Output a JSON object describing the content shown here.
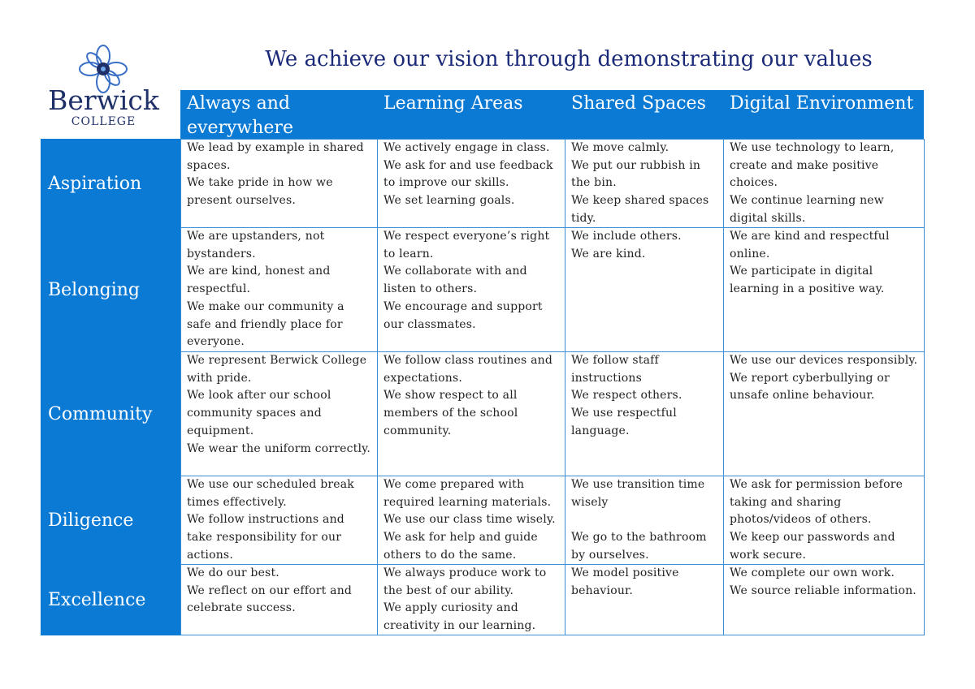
{
  "logo": {
    "name": "Berwick",
    "sub": "COLLEGE"
  },
  "title": "We achieve our vision through demonstrating our values",
  "table": {
    "columns": [
      "Always and everywhere",
      "Learning Areas",
      "Shared Spaces",
      "Digital Environment"
    ],
    "rows": [
      {
        "label": "Aspiration",
        "cells": [
          [
            "We lead by example in shared spaces.",
            "We take pride in how we present ourselves."
          ],
          [
            "We actively engage in class.",
            "We ask for and use feedback to improve our skills.",
            "We set learning goals."
          ],
          [
            "We move calmly.",
            "We put our rubbish in the bin.",
            "We keep shared spaces tidy."
          ],
          [
            "We use technology to learn, create and make positive choices.",
            "We continue learning new digital skills."
          ]
        ]
      },
      {
        "label": "Belonging",
        "cells": [
          [
            "We are upstanders, not bystanders.",
            "We are kind, honest and respectful.",
            "We make our community a safe and friendly place for everyone."
          ],
          [
            "We respect everyone’s right to learn.",
            "We collaborate with and listen to others.",
            "We encourage and support our classmates."
          ],
          [
            "We include others.",
            "We are kind."
          ],
          [
            "We are kind and respectful online.",
            "We participate in digital learning in a positive way."
          ]
        ]
      },
      {
        "label": "Community",
        "cells": [
          [
            "We represent Berwick College with pride.",
            "We look after our school community spaces and equipment.",
            "We wear the uniform correctly."
          ],
          [
            "We follow class routines and expectations.",
            "We show respect to all members of the school community."
          ],
          [
            "We follow staff instructions",
            "We respect others.",
            "We use respectful language."
          ],
          [
            "We use our devices responsibly.",
            "We report cyberbullying or unsafe online behaviour."
          ]
        ]
      },
      {
        "label": "Diligence",
        "cells": [
          [
            "We use our scheduled break times effectively.",
            "We follow instructions and take responsibility for our actions."
          ],
          [
            "We come prepared with required learning materials.",
            "We use our class time wisely.",
            "We ask for help and guide others to do the same."
          ],
          [
            "We use transition time wisely",
            "We go to the bathroom by ourselves."
          ],
          [
            "We ask for permission before taking and sharing photos/videos of others.",
            "We keep our passwords and work secure."
          ]
        ]
      },
      {
        "label": "Excellence",
        "cells": [
          [
            "We do our best.",
            "We reflect on our effort and celebrate success."
          ],
          [
            "We always produce work to the best of our ability.",
            "We apply curiosity and creativity in our learning."
          ],
          [
            "We model positive behaviour."
          ],
          [
            "We complete our own work.",
            "We source reliable information."
          ]
        ]
      }
    ]
  }
}
